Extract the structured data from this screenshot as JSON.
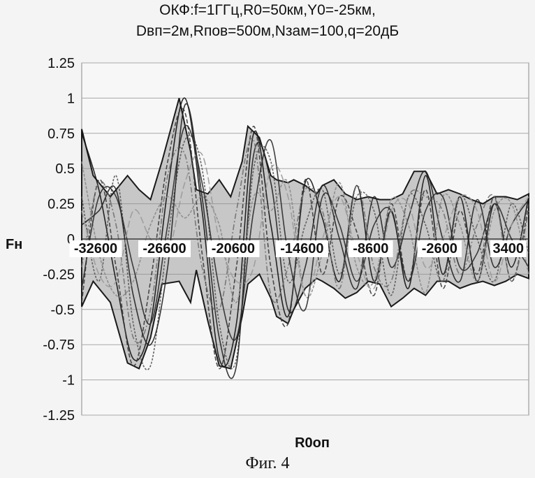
{
  "chart_data": {
    "type": "line",
    "title_lines": [
      "ОКФ:f=1ГГц,R0=50км,Y0=-25км,",
      "Dвп=2м,Rпов=500м,Nзам=100,q=20дБ"
    ],
    "xlabel": "R0оп",
    "ylabel": "Fн",
    "ylim": [
      -1.25,
      1.25
    ],
    "yticks": [
      "1.25",
      "1",
      "0.75",
      "0.5",
      "0.25",
      "0",
      "-0.25",
      "-0.5",
      "-0.75",
      "-1",
      "-1.25"
    ],
    "xticks": [
      "-32600",
      "-26600",
      "-20600",
      "-14600",
      "-8600",
      "-2600",
      "3400"
    ],
    "xlim": [
      -32600,
      6400
    ],
    "grid": true,
    "envelope": {
      "x": [
        -32600,
        -31600,
        -30100,
        -28600,
        -27600,
        -26600,
        -25600,
        -24100,
        -23100,
        -22600,
        -21600,
        -20600,
        -19600,
        -18600,
        -18100,
        -17100,
        -16100,
        -15600,
        -14600,
        -14100,
        -13100,
        -12100,
        -11600,
        -10600,
        -9600,
        -8600,
        -7600,
        -6600,
        -5600,
        -4600,
        -3600,
        -2600,
        -1600,
        -600,
        400,
        1400,
        2400,
        3400,
        4400,
        5400,
        6400
      ],
      "upper": [
        0.78,
        0.45,
        0.3,
        0.45,
        0.35,
        0.28,
        0.55,
        1.0,
        0.62,
        0.35,
        0.32,
        0.42,
        0.3,
        0.55,
        0.8,
        0.72,
        0.45,
        0.42,
        0.4,
        0.42,
        0.38,
        0.32,
        0.38,
        0.42,
        0.32,
        0.28,
        0.3,
        0.28,
        0.28,
        0.32,
        0.48,
        0.48,
        0.32,
        0.35,
        0.32,
        0.28,
        0.25,
        0.3,
        0.3,
        0.28,
        0.32
      ],
      "lower": [
        -0.48,
        -0.3,
        -0.45,
        -0.88,
        -0.92,
        -0.7,
        -0.32,
        -0.3,
        -0.45,
        -0.22,
        -0.58,
        -0.9,
        -0.92,
        -0.55,
        -0.32,
        -0.25,
        -0.42,
        -0.55,
        -0.6,
        -0.5,
        -0.35,
        -0.28,
        -0.3,
        -0.35,
        -0.42,
        -0.38,
        -0.3,
        -0.32,
        -0.48,
        -0.42,
        -0.35,
        -0.4,
        -0.3,
        -0.3,
        -0.35,
        -0.32,
        -0.3,
        -0.33,
        -0.3,
        -0.25,
        -0.28
      ]
    },
    "series": [
      {
        "x": [
          -32600,
          -31100,
          -29600,
          -28100,
          -26600,
          -25100,
          -23600,
          -22100,
          -20600,
          -19100,
          -17600,
          -16100,
          -14600,
          -13100,
          -11600,
          -10100,
          -8600,
          -7100,
          -5600,
          -4100,
          -2600,
          -1100,
          400,
          1900,
          3400,
          4900,
          6400
        ],
        "y": [
          0.75,
          0.35,
          -0.3,
          -0.85,
          -0.6,
          0.35,
          1.0,
          0.2,
          -0.85,
          -0.6,
          0.75,
          0.1,
          -0.55,
          0.4,
          0.15,
          -0.3,
          0.38,
          -0.3,
          0.2,
          -0.35,
          0.45,
          -0.25,
          0.3,
          -0.3,
          0.25,
          -0.2,
          0.3
        ]
      },
      {
        "x": [
          -32600,
          -31100,
          -29600,
          -28100,
          -26600,
          -25100,
          -23600,
          -22100,
          -20600,
          -19100,
          -17600,
          -16100,
          -14600,
          -13100,
          -11600,
          -10100,
          -8600,
          -7100,
          -5600,
          -4100,
          -2600,
          -1100,
          400,
          1900,
          3400,
          4900,
          6400
        ],
        "y": [
          -0.45,
          0.42,
          -0.2,
          -0.9,
          -0.3,
          0.55,
          0.9,
          -0.1,
          -0.92,
          -0.2,
          0.8,
          -0.2,
          -0.6,
          0.42,
          -0.25,
          0.3,
          0.05,
          -0.4,
          0.25,
          -0.3,
          0.35,
          -0.35,
          0.2,
          -0.25,
          0.3,
          -0.3,
          0.25
        ]
      },
      {
        "x": [
          -32600,
          -31100,
          -29600,
          -28100,
          -26600,
          -25100,
          -23600,
          -22100,
          -20600,
          -19100,
          -17600,
          -16100,
          -14600,
          -13100,
          -11600,
          -10100,
          -8600,
          -7100,
          -5600,
          -4100,
          -2600,
          -1100,
          400,
          1900,
          3400,
          4900,
          6400
        ],
        "y": [
          0.3,
          -0.3,
          0.45,
          -0.6,
          -0.9,
          0.0,
          0.7,
          0.5,
          -0.6,
          -0.85,
          0.5,
          0.55,
          -0.3,
          0.1,
          0.35,
          -0.25,
          0.3,
          0.2,
          -0.4,
          0.3,
          0.1,
          -0.3,
          0.3,
          0.0,
          -0.3,
          0.25,
          -0.1
        ]
      },
      {
        "x": [
          -32600,
          -31100,
          -29600,
          -28100,
          -26600,
          -25100,
          -23600,
          -22100,
          -20600,
          -19100,
          -17600,
          -16100,
          -14600,
          -13100,
          -11600,
          -10100,
          -8600,
          -7100,
          -5600,
          -4100,
          -2600,
          -1100,
          400,
          1900,
          3400,
          4900,
          6400
        ],
        "y": [
          0.1,
          0.2,
          0.35,
          -0.4,
          -0.75,
          -0.2,
          0.95,
          0.3,
          -0.7,
          -0.9,
          0.6,
          0.4,
          -0.5,
          -0.2,
          0.38,
          0.0,
          -0.35,
          0.3,
          -0.2,
          0.15,
          0.48,
          0.0,
          -0.3,
          0.28,
          -0.2,
          0.1,
          0.28
        ]
      },
      {
        "x": [
          -32600,
          -31100,
          -29600,
          -28100,
          -26600,
          -25100,
          -23600,
          -22100,
          -20600,
          -19100,
          -17600,
          -16100,
          -14600,
          -13100,
          -11600,
          -10100,
          -8600,
          -7100,
          -5600,
          -4100,
          -2600,
          -1100,
          400,
          1900,
          3400,
          4900,
          6400
        ],
        "y": [
          -0.2,
          0.4,
          0.1,
          -0.7,
          -0.5,
          0.45,
          0.6,
          -0.2,
          -0.5,
          0.2,
          0.7,
          -0.4,
          -0.2,
          0.35,
          0.2,
          -0.35,
          0.38,
          -0.2,
          -0.3,
          0.3,
          0.3,
          0.2,
          -0.25,
          0.1,
          0.3,
          -0.3,
          0.2
        ]
      },
      {
        "x": [
          -32600,
          -31100,
          -29600,
          -28100,
          -26600,
          -25100,
          -23600,
          -22100,
          -20600,
          -19100,
          -17600,
          -16100,
          -14600,
          -13100,
          -11600,
          -10100,
          -8600,
          -7100,
          -5600,
          -4100,
          -2600,
          -1100,
          400,
          1900,
          3400,
          4900,
          6400
        ],
        "y": [
          0.55,
          -0.1,
          -0.4,
          -0.3,
          0.1,
          0.3,
          0.15,
          0.3,
          0.1,
          -0.45,
          0.3,
          0.2,
          0.4,
          -0.4,
          -0.1,
          0.4,
          -0.2,
          -0.3,
          0.28,
          0.1,
          -0.38,
          0.3,
          0.1,
          -0.3,
          0.2,
          0.25,
          -0.25
        ]
      },
      {
        "x": [
          -32600,
          -31100,
          -29600,
          -28100,
          -26600,
          -25100,
          -23600,
          -22100,
          -20600,
          -19100,
          -17600,
          -16100,
          -14600,
          -13100,
          -11600,
          -10100,
          -8600,
          -7100,
          -5600,
          -4100,
          -2600,
          -1100,
          400,
          1900,
          3400,
          4900,
          6400
        ],
        "y": [
          -0.35,
          0.3,
          0.3,
          -0.2,
          -0.6,
          0.1,
          0.8,
          0.4,
          -0.35,
          -0.7,
          0.2,
          0.7,
          -0.1,
          -0.5,
          0.3,
          0.1,
          -0.3,
          0.1,
          0.2,
          -0.3,
          0.2,
          0.3,
          -0.2,
          -0.1,
          0.25,
          0.0,
          -0.2
        ]
      },
      {
        "x": [
          -32600,
          -31100,
          -29600,
          -28100,
          -26600,
          -25100,
          -23600,
          -22100,
          -20600,
          -19100,
          -17600,
          -16100,
          -14600,
          -13100,
          -11600,
          -10100,
          -8600,
          -7100,
          -5600,
          -4100,
          -2600,
          -1100,
          400,
          1900,
          3400,
          4900,
          6400
        ],
        "y": [
          0.2,
          -0.25,
          -0.3,
          0.2,
          0.0,
          -0.1,
          0.4,
          0.6,
          0.0,
          -0.3,
          -0.2,
          0.5,
          0.3,
          -0.4,
          0.0,
          0.3,
          -0.1,
          -0.35,
          0.2,
          0.25,
          -0.2,
          0.0,
          0.3,
          0.2,
          -0.3,
          0.1,
          0.3
        ]
      }
    ],
    "series_colors": [
      "#111111",
      "#3a3a3a",
      "#555555",
      "#222222",
      "#707070",
      "#8a8a8a",
      "#2b2b2b",
      "#9a9a9a"
    ]
  },
  "caption": "Фиг. 4"
}
